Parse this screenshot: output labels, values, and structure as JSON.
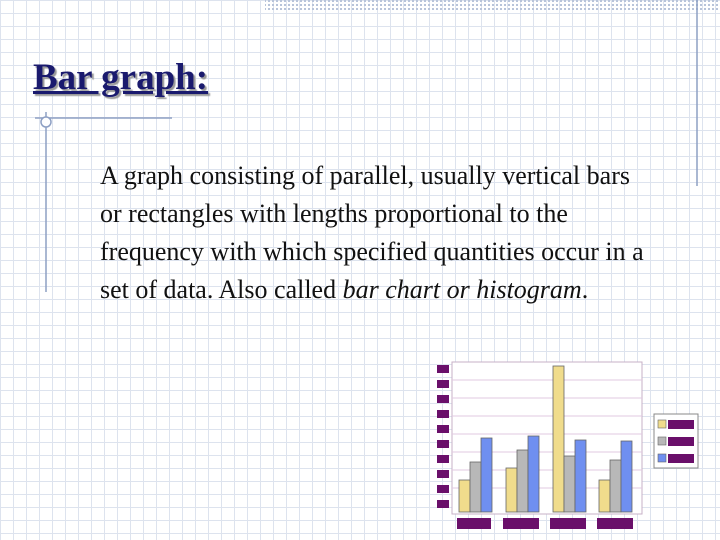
{
  "header": {
    "title": "Bar graph:"
  },
  "body": {
    "text_before": "A graph consisting of parallel, usually vertical bars or rectangles with lengths proportional to the frequency with which specified quantities occur in a set of data. Also called ",
    "italic": "bar chart or histogram",
    "text_after": "."
  }
}
